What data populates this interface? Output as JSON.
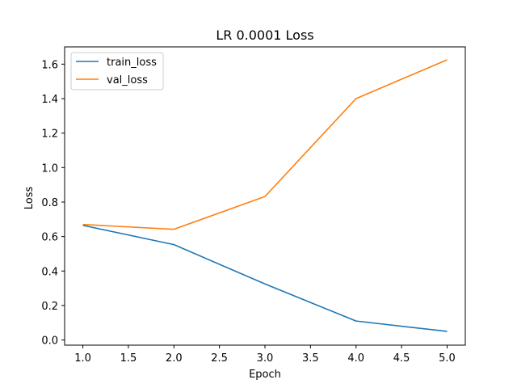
{
  "chart_data": {
    "type": "line",
    "title": "LR 0.0001 Loss",
    "xlabel": "Epoch",
    "ylabel": "Loss",
    "x": [
      1.0,
      2.0,
      3.0,
      4.0,
      5.0
    ],
    "xlim": [
      0.8,
      5.2
    ],
    "ylim": [
      -0.03,
      1.7
    ],
    "xticks": [
      1.0,
      1.5,
      2.0,
      2.5,
      3.0,
      3.5,
      4.0,
      4.5,
      5.0
    ],
    "xtick_labels": [
      "1.0",
      "1.5",
      "2.0",
      "2.5",
      "3.0",
      "3.5",
      "4.0",
      "4.5",
      "5.0"
    ],
    "yticks": [
      0.0,
      0.2,
      0.4,
      0.6,
      0.8,
      1.0,
      1.2,
      1.4,
      1.6
    ],
    "ytick_labels": [
      "0.0",
      "0.2",
      "0.4",
      "0.6",
      "0.8",
      "1.0",
      "1.2",
      "1.4",
      "1.6"
    ],
    "grid": false,
    "legend_position": "top-left",
    "series": [
      {
        "name": "train_loss",
        "color": "#1f77b4",
        "values": [
          0.665,
          0.553,
          0.325,
          0.11,
          0.05
        ]
      },
      {
        "name": "val_loss",
        "color": "#ff7f0e",
        "values": [
          0.67,
          0.642,
          0.832,
          1.4,
          1.625
        ]
      }
    ]
  }
}
